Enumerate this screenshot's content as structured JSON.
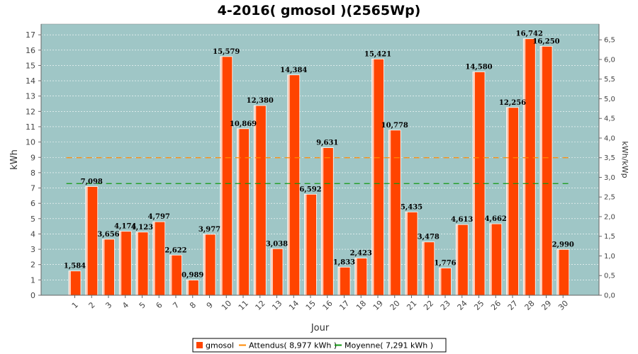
{
  "chart_data": {
    "type": "bar",
    "title": "4-2016( gmosol )(2565Wp)",
    "xlabel": "Jour",
    "ylabel": "kWh",
    "ylabel_right": "kWh/kWp",
    "ylim": [
      0,
      17.7
    ],
    "yticks": [
      "0",
      "1",
      "2",
      "3",
      "4",
      "5",
      "6",
      "7",
      "8",
      "9",
      "10",
      "11",
      "12",
      "13",
      "14",
      "15",
      "16",
      "17"
    ],
    "yticks_right": [
      "0,0",
      "0,5",
      "1,0",
      "1,5",
      "2,0",
      "2,5",
      "3,0",
      "3,5",
      "4,0",
      "4,5",
      "5,0",
      "5,5",
      "6,0",
      "6,5"
    ],
    "categories": [
      "1",
      "2",
      "3",
      "4",
      "5",
      "6",
      "7",
      "8",
      "9",
      "10",
      "11",
      "12",
      "13",
      "14",
      "15",
      "16",
      "17",
      "18",
      "19",
      "20",
      "21",
      "22",
      "23",
      "24",
      "25",
      "26",
      "27",
      "28",
      "29",
      "30"
    ],
    "series": [
      {
        "name": "gmosol",
        "values": [
          1.584,
          7.098,
          3.656,
          4.174,
          4.123,
          4.797,
          2.622,
          0.989,
          3.977,
          15.579,
          10.869,
          12.38,
          3.038,
          14.384,
          6.592,
          9.631,
          1.833,
          2.423,
          15.421,
          10.778,
          5.435,
          3.478,
          1.776,
          4.613,
          14.58,
          4.662,
          12.256,
          16.742,
          16.25,
          2.99
        ],
        "labels": [
          "1,584",
          "7,098",
          "3,656",
          "4,174",
          "4,123",
          "4,797",
          "2,622",
          "0,989",
          "3,977",
          "15,579",
          "10,869",
          "12,380",
          "3,038",
          "14,384",
          "6,592",
          "9,631",
          "1,833",
          "2,423",
          "15,421",
          "10,778",
          "5,435",
          "3,478",
          "1,776",
          "4,613",
          "14,580",
          "4,662",
          "12,256",
          "16,742",
          "16,250",
          "2,990"
        ],
        "color": "#ff4400"
      }
    ],
    "lines": [
      {
        "name": "Attendus( 8,977 kWh )",
        "value": 8.977,
        "color": "#ff8800"
      },
      {
        "name": "Moyenne( 7,291 kWh )",
        "value": 7.291,
        "color": "#119911"
      }
    ],
    "grid": true,
    "background": "#9fc6c6",
    "legend": "bottom"
  }
}
